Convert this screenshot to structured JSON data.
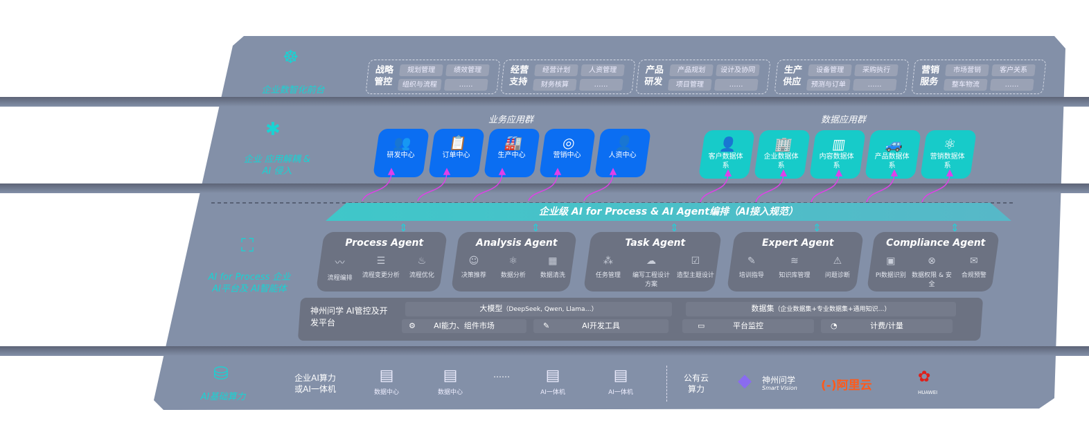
{
  "top": {
    "label": "企业数智化前台",
    "icon": "brain-head-icon",
    "groups": [
      {
        "title": "战略管控",
        "items": [
          "规划管理",
          "绩效管理",
          "组织与流程",
          "……"
        ]
      },
      {
        "title": "经营支持",
        "items": [
          "经营计划",
          "人资管理",
          "财务核算",
          "……"
        ]
      },
      {
        "title": "产品研发",
        "items": [
          "产品规划",
          "设计及协同",
          "项目管理",
          "……"
        ]
      },
      {
        "title": "生产供应",
        "items": [
          "设备管理",
          "采购执行",
          "预测与订单",
          "……"
        ]
      },
      {
        "title": "营销服务",
        "items": [
          "市场营销",
          "客户关系",
          "整车物流",
          "……"
        ]
      }
    ]
  },
  "apps": {
    "label": "企业 应用解耦 & AI 侵入",
    "icon": "network-node-icon",
    "business_title": "业务应用群",
    "business": [
      "研发中心",
      "订单中心",
      "生产中心",
      "营销中心",
      "人资中心"
    ],
    "data_title": "数据应用群",
    "data": [
      "客户数据体系",
      "企业数据体系",
      "内容数据体系",
      "产品数据体系",
      "营销数据体系"
    ],
    "colors": {
      "business": "#0b6ef2",
      "data": "#17cbc9",
      "arrows": "#e040e8"
    }
  },
  "ai": {
    "label": "AI for Process 企业AI平台及 AI智能体",
    "icon": "face-scan-icon",
    "banner": "企业级 AI for Process & AI Agent编排（AI接入规范）",
    "agents": [
      {
        "title": "Process Agent",
        "items": [
          "流程编排",
          "流程变更分析",
          "流程优化"
        ]
      },
      {
        "title": "Analysis Agent",
        "items": [
          "决策推荐",
          "数据分析",
          "数据清洗"
        ]
      },
      {
        "title": "Task Agent",
        "items": [
          "任务管理",
          "编写工程设计方案",
          "造型主题设计"
        ]
      },
      {
        "title": "Expert Agent",
        "items": [
          "培训指导",
          "知识库管理",
          "问题诊断"
        ]
      },
      {
        "title": "Compliance Agent",
        "items": [
          "PI数据识别",
          "数据权限 & 安全",
          "合规预警"
        ]
      }
    ],
    "platform": {
      "title": "神州问学 AI管控及开发平台",
      "model": "大模型",
      "model_note": "（DeepSeek, Qwen, Llama…）",
      "dataset": "数据集",
      "dataset_note": "（企业数据集+专业数据集+通用知识…）",
      "tools": [
        "AI能力、组件市场",
        "AI开发工具",
        "平台监控",
        "计费/计量"
      ]
    }
  },
  "infra": {
    "label": "AI基础算力",
    "icon": "database-icon",
    "enterprise": "企业AI算力 或AI一体机",
    "nodes": [
      "数据中心",
      "数据中心",
      "AI一体机",
      "AI一体机"
    ],
    "ellipsis": "……",
    "public": "公有云 算力",
    "vendors": [
      "神州问学",
      "Smart Vision",
      "阿里云",
      "HUAWEI"
    ]
  }
}
